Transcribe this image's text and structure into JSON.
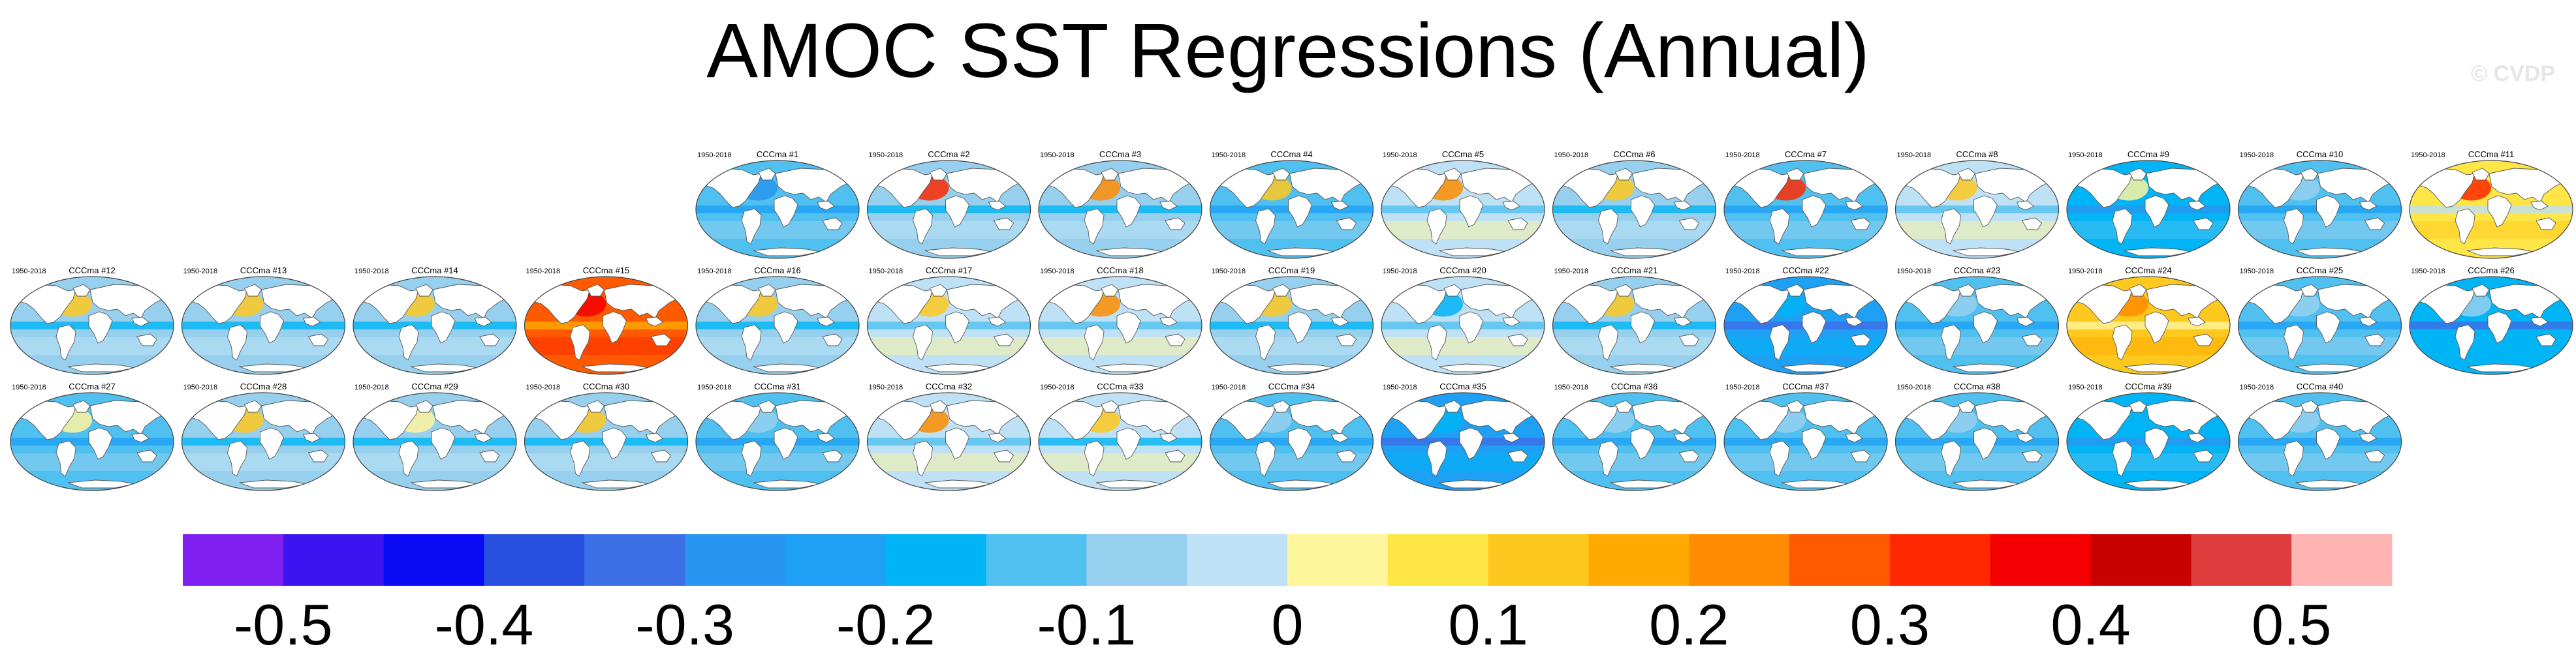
{
  "title": "AMOC SST Regressions (Annual)",
  "watermark": "© CVDP",
  "chart_data": {
    "type": "heatmap",
    "title": "AMOC SST Regressions (Annual)",
    "period": "1950-2018",
    "model": "CCCma",
    "panels": [
      {
        "label": "CCCma #1",
        "period": "1950-2018",
        "mean": -0.15,
        "north_atlantic": -0.3
      },
      {
        "label": "CCCma #2",
        "period": "1950-2018",
        "mean": -0.1,
        "north_atlantic": 0.3
      },
      {
        "label": "CCCma #3",
        "period": "1950-2018",
        "mean": -0.1,
        "north_atlantic": 0.2
      },
      {
        "label": "CCCma #4",
        "period": "1950-2018",
        "mean": -0.15,
        "north_atlantic": 0.1
      },
      {
        "label": "CCCma #5",
        "period": "1950-2018",
        "mean": -0.02,
        "north_atlantic": 0.2
      },
      {
        "label": "CCCma #6",
        "period": "1950-2018",
        "mean": -0.06,
        "north_atlantic": 0.1
      },
      {
        "label": "CCCma #7",
        "period": "1950-2018",
        "mean": -0.12,
        "north_atlantic": 0.3
      },
      {
        "label": "CCCma #8",
        "period": "1950-2018",
        "mean": -0.02,
        "north_atlantic": 0.1
      },
      {
        "label": "CCCma #9",
        "period": "1950-2018",
        "mean": -0.16,
        "north_atlantic": 0.0
      },
      {
        "label": "CCCma #10",
        "period": "1950-2018",
        "mean": -0.14,
        "north_atlantic": -0.1
      },
      {
        "label": "CCCma #11",
        "period": "1950-2018",
        "mean": 0.08,
        "north_atlantic": 0.3
      },
      {
        "label": "CCCma #12",
        "period": "1950-2018",
        "mean": -0.1,
        "north_atlantic": 0.1
      },
      {
        "label": "CCCma #13",
        "period": "1950-2018",
        "mean": -0.08,
        "north_atlantic": 0.1
      },
      {
        "label": "CCCma #14",
        "period": "1950-2018",
        "mean": -0.1,
        "north_atlantic": 0.1
      },
      {
        "label": "CCCma #15",
        "period": "1950-2018",
        "mean": 0.25,
        "north_atlantic": 0.35
      },
      {
        "label": "CCCma #16",
        "period": "1950-2018",
        "mean": -0.08,
        "north_atlantic": 0.1
      },
      {
        "label": "CCCma #17",
        "period": "1950-2018",
        "mean": -0.04,
        "north_atlantic": 0.1
      },
      {
        "label": "CCCma #18",
        "period": "1950-2018",
        "mean": -0.04,
        "north_atlantic": 0.2
      },
      {
        "label": "CCCma #19",
        "period": "1950-2018",
        "mean": -0.08,
        "north_atlantic": 0.1
      },
      {
        "label": "CCCma #20",
        "period": "1950-2018",
        "mean": -0.04,
        "north_atlantic": -0.2
      },
      {
        "label": "CCCma #21",
        "period": "1950-2018",
        "mean": -0.08,
        "north_atlantic": 0.1
      },
      {
        "label": "CCCma #22",
        "period": "1950-2018",
        "mean": -0.22,
        "north_atlantic": -0.2
      },
      {
        "label": "CCCma #23",
        "period": "1950-2018",
        "mean": -0.15,
        "north_atlantic": -0.1
      },
      {
        "label": "CCCma #24",
        "period": "1950-2018",
        "mean": 0.1,
        "north_atlantic": 0.2
      },
      {
        "label": "CCCma #25",
        "period": "1950-2018",
        "mean": -0.15,
        "north_atlantic": -0.1
      },
      {
        "label": "CCCma #26",
        "period": "1950-2018",
        "mean": -0.2,
        "north_atlantic": -0.1
      },
      {
        "label": "CCCma #27",
        "period": "1950-2018",
        "mean": -0.14,
        "north_atlantic": 0.0
      },
      {
        "label": "CCCma #28",
        "period": "1950-2018",
        "mean": -0.07,
        "north_atlantic": 0.1
      },
      {
        "label": "CCCma #29",
        "period": "1950-2018",
        "mean": -0.1,
        "north_atlantic": 0.0
      },
      {
        "label": "CCCma #30",
        "period": "1950-2018",
        "mean": -0.1,
        "north_atlantic": 0.1
      },
      {
        "label": "CCCma #31",
        "period": "1950-2018",
        "mean": -0.12,
        "north_atlantic": -0.1
      },
      {
        "label": "CCCma #32",
        "period": "1950-2018",
        "mean": -0.02,
        "north_atlantic": 0.2
      },
      {
        "label": "CCCma #33",
        "period": "1950-2018",
        "mean": -0.05,
        "north_atlantic": 0.1
      },
      {
        "label": "CCCma #34",
        "period": "1950-2018",
        "mean": -0.14,
        "north_atlantic": -0.1
      },
      {
        "label": "CCCma #35",
        "period": "1950-2018",
        "mean": -0.24,
        "north_atlantic": -0.2
      },
      {
        "label": "CCCma #36",
        "period": "1950-2018",
        "mean": -0.12,
        "north_atlantic": -0.1
      },
      {
        "label": "CCCma #37",
        "period": "1950-2018",
        "mean": -0.14,
        "north_atlantic": -0.1
      },
      {
        "label": "CCCma #38",
        "period": "1950-2018",
        "mean": -0.12,
        "north_atlantic": -0.1
      },
      {
        "label": "CCCma #39",
        "period": "1950-2018",
        "mean": -0.16,
        "north_atlantic": -0.2
      },
      {
        "label": "CCCma #40",
        "period": "1950-2018",
        "mean": -0.12,
        "north_atlantic": -0.1
      }
    ],
    "colorbar": {
      "levels": [
        -0.55,
        -0.5,
        -0.45,
        -0.4,
        -0.35,
        -0.3,
        -0.25,
        -0.2,
        -0.15,
        -0.1,
        -0.05,
        0,
        0.05,
        0.1,
        0.15,
        0.2,
        0.25,
        0.3,
        0.35,
        0.4,
        0.45,
        0.5,
        0.55
      ],
      "colors": [
        "#8020f0",
        "#3c14f0",
        "#0a0af5",
        "#2850e0",
        "#3c6ee6",
        "#2896f0",
        "#1ea0f5",
        "#00b4f5",
        "#50c0f0",
        "#96d0ee",
        "#bee1f5",
        "#fff59c",
        "#ffe646",
        "#ffc81e",
        "#ffaa00",
        "#ff8c00",
        "#ff5a00",
        "#ff2800",
        "#f50000",
        "#c80000",
        "#dc3c3c",
        "#ffb4b4"
      ],
      "tick_values": [
        -0.5,
        -0.4,
        -0.3,
        -0.2,
        -0.1,
        0,
        0.1,
        0.2,
        0.3,
        0.4,
        0.5
      ],
      "tick_labels": [
        "-0.5",
        "-0.4",
        "-0.3",
        "-0.2",
        "-0.1",
        "0",
        "0.1",
        "0.2",
        "0.3",
        "0.4",
        "0.5"
      ]
    }
  }
}
